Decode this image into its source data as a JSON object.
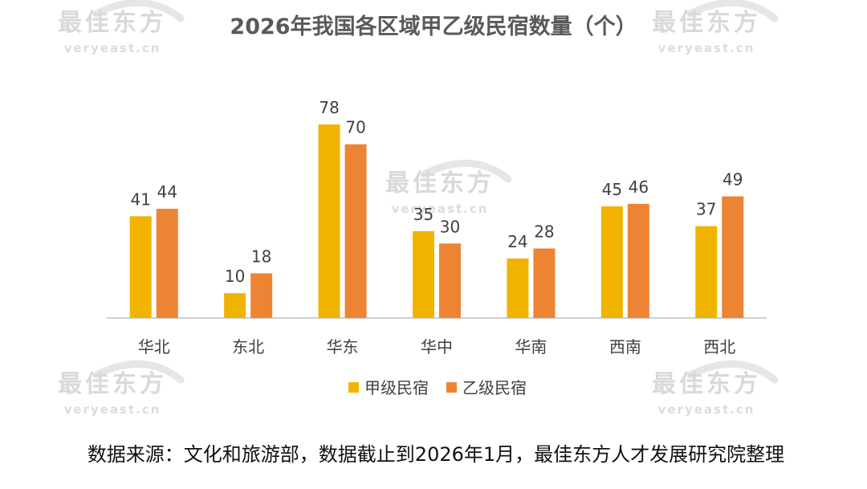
{
  "chart_data": {
    "type": "bar",
    "title": "2026年我国各区域甲乙级民宿数量（个）",
    "categories": [
      "华北",
      "东北",
      "华东",
      "华中",
      "华南",
      "西南",
      "西北"
    ],
    "series": [
      {
        "name": "甲级民宿",
        "values": [
          41,
          10,
          78,
          35,
          24,
          45,
          37
        ],
        "color": "#F0B400"
      },
      {
        "name": "乙级民宿",
        "values": [
          44,
          18,
          70,
          30,
          28,
          46,
          49
        ],
        "color": "#ED8433"
      }
    ],
    "ylim": [
      0,
      80
    ],
    "grid": false,
    "legend_position": "bottom-center",
    "data_labels": true
  },
  "source_note": "数据来源：文化和旅游部，数据截止到2026年1月，最佳东方人才发展研究院整理",
  "watermark": {
    "brand": "最佳东方",
    "site": "veryeast.cn"
  }
}
